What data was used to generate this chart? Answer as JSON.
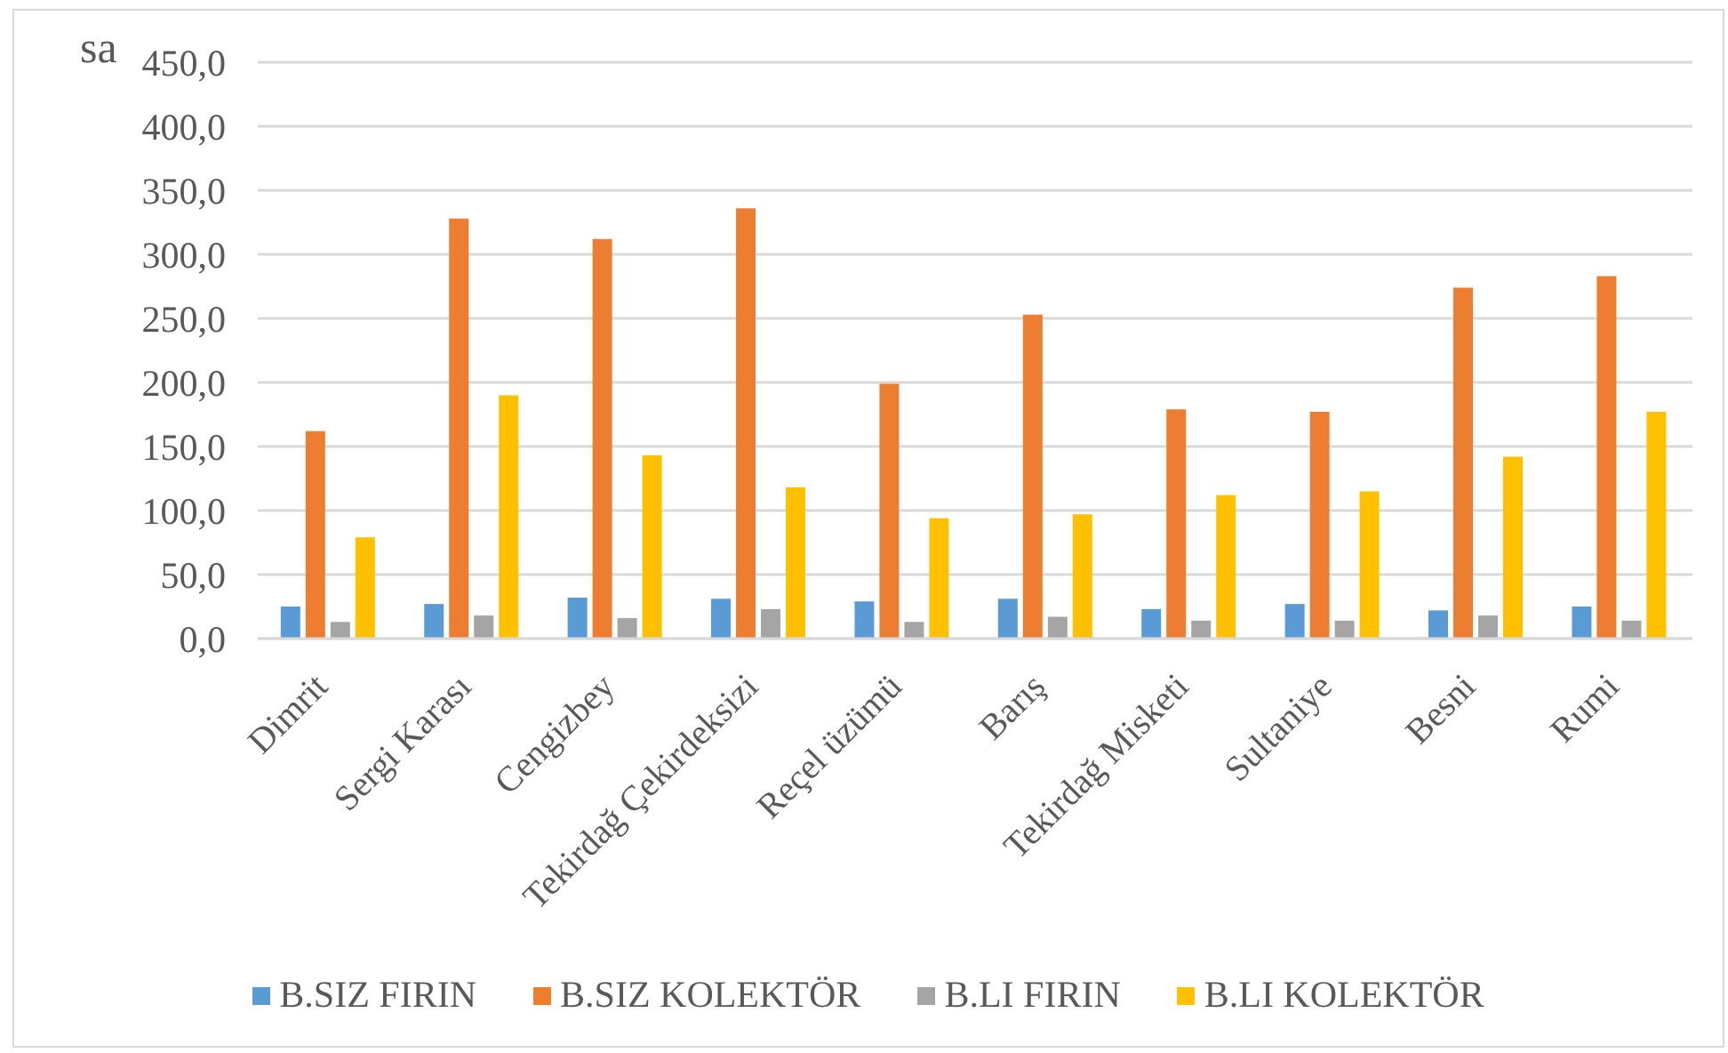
{
  "chart_data": {
    "type": "bar",
    "ylabel": "sa",
    "categories": [
      "Dimrit",
      "Sergi Karası",
      "Cengizbey",
      "Tekirdağ Çekirdeksizi",
      "Reçel üzümü",
      "Barış",
      "Tekirdağ Misketi",
      "Sultaniye",
      "Besni",
      "Rumi"
    ],
    "series": [
      {
        "name": "B.SIZ FIRIN",
        "color": "#5b9bd5",
        "values": [
          25,
          27,
          32,
          31,
          29,
          31,
          23,
          27,
          22,
          25
        ]
      },
      {
        "name": "B.SIZ KOLEKTÖR",
        "color": "#ed7d31",
        "values": [
          162,
          328,
          312,
          336,
          199,
          253,
          179,
          177,
          274,
          283
        ]
      },
      {
        "name": "B.LI FIRIN",
        "color": "#a5a5a5",
        "values": [
          13,
          18,
          16,
          23,
          13,
          17,
          14,
          14,
          18,
          14
        ]
      },
      {
        "name": "B.LI KOLEKTÖR",
        "color": "#ffc000",
        "values": [
          79,
          190,
          143,
          118,
          94,
          97,
          112,
          115,
          142,
          177
        ]
      }
    ],
    "ylim": [
      0,
      450
    ],
    "yticks": [
      {
        "value": 0,
        "label": "0,0"
      },
      {
        "value": 50,
        "label": "50,0"
      },
      {
        "value": 100,
        "label": "100,0"
      },
      {
        "value": 150,
        "label": "150,0"
      },
      {
        "value": 200,
        "label": "200,0"
      },
      {
        "value": 250,
        "label": "250,0"
      },
      {
        "value": 300,
        "label": "300,0"
      },
      {
        "value": 350,
        "label": "350,0"
      },
      {
        "value": 400,
        "label": "400,0"
      },
      {
        "value": 450,
        "label": "450,0"
      }
    ],
    "grid": "y",
    "legend": "bottom"
  }
}
